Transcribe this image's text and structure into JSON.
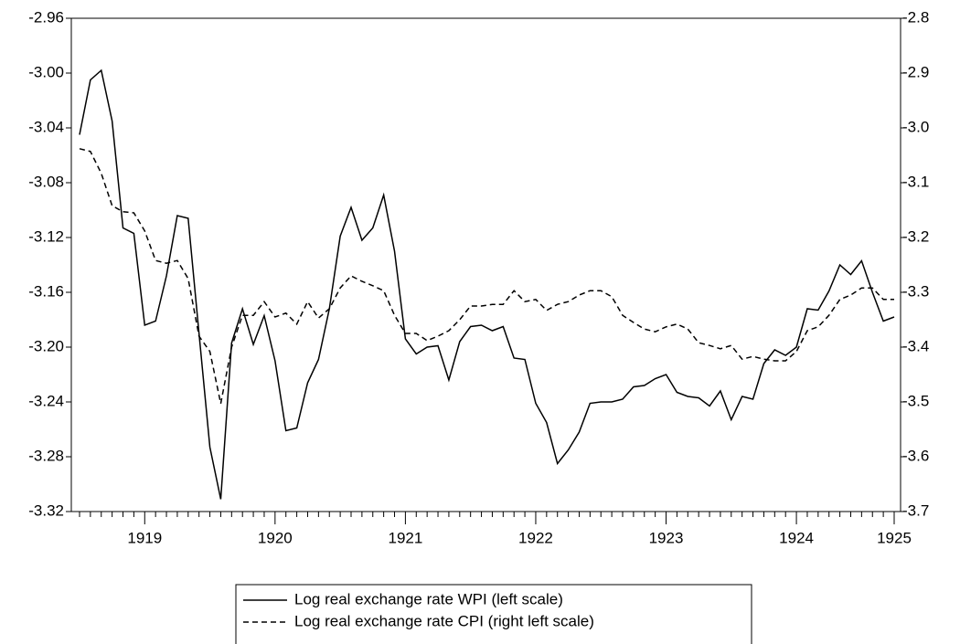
{
  "chart_data": {
    "type": "line",
    "categories": [
      null,
      null,
      null,
      null,
      null,
      null,
      "1919",
      null,
      null,
      null,
      null,
      null,
      null,
      null,
      null,
      null,
      null,
      null,
      "1920",
      null,
      null,
      null,
      null,
      null,
      null,
      null,
      null,
      null,
      null,
      null,
      "1921",
      null,
      null,
      null,
      null,
      null,
      null,
      null,
      null,
      null,
      null,
      null,
      "1922",
      null,
      null,
      null,
      null,
      null,
      null,
      null,
      null,
      null,
      null,
      null,
      "1923",
      null,
      null,
      null,
      null,
      null,
      null,
      null,
      null,
      null,
      null,
      null,
      "1924",
      null,
      null,
      null,
      null,
      null,
      null,
      null,
      null,
      "1925"
    ],
    "series": [
      {
        "name": "Log real exchange rate WPI (left scale)",
        "color": "#000000",
        "dash": "solid",
        "values": [
          -3.045,
          -3.005,
          -2.998,
          -3.035,
          -3.113,
          -3.117,
          -3.184,
          -3.181,
          -3.148,
          -3.104,
          -3.106,
          -3.19,
          -3.273,
          -3.311,
          -3.197,
          -3.172,
          -3.198,
          -3.177,
          -3.21,
          -3.261,
          -3.259,
          -3.226,
          -3.209,
          -3.172,
          -3.119,
          -3.098,
          -3.122,
          -3.113,
          -3.089,
          -3.13,
          -3.194,
          -3.205,
          -3.2,
          -3.199,
          -3.224,
          -3.196,
          -3.185,
          -3.184,
          -3.188,
          -3.185,
          -3.208,
          -3.209,
          -3.241,
          -3.255,
          -3.285,
          -3.275,
          -3.262,
          -3.241,
          -3.24,
          -3.24,
          -3.238,
          -3.229,
          -3.228,
          -3.223,
          -3.22,
          -3.233,
          -3.236,
          -3.237,
          -3.243,
          -3.232,
          -3.253,
          -3.236,
          -3.238,
          -3.212,
          -3.202,
          -3.206,
          -3.2,
          -3.172,
          -3.173,
          -3.159,
          -3.14,
          -3.147,
          -3.137,
          -3.16,
          -3.181,
          -3.178
        ]
      },
      {
        "name": "Log real exchange rate CPI (right left scale)",
        "color": "#000000",
        "dash": "dashed",
        "axis": "y2",
        "values": [
          -3.038,
          -3.043,
          -3.083,
          -3.142,
          -3.153,
          -3.155,
          -3.188,
          -3.242,
          -3.247,
          -3.242,
          -3.275,
          -3.38,
          -3.408,
          -3.503,
          -3.4,
          -3.342,
          -3.342,
          -3.317,
          -3.345,
          -3.338,
          -3.358,
          -3.317,
          -3.347,
          -3.33,
          -3.292,
          -3.27,
          -3.28,
          -3.288,
          -3.297,
          -3.342,
          -3.375,
          -3.375,
          -3.388,
          -3.38,
          -3.37,
          -3.35,
          -3.325,
          -3.325,
          -3.322,
          -3.322,
          -3.297,
          -3.317,
          -3.313,
          -3.333,
          -3.322,
          -3.317,
          -3.305,
          -3.297,
          -3.297,
          -3.308,
          -3.342,
          -3.355,
          -3.367,
          -3.372,
          -3.363,
          -3.358,
          -3.367,
          -3.392,
          -3.397,
          -3.403,
          -3.397,
          -3.422,
          -3.417,
          -3.422,
          -3.425,
          -3.425,
          -3.408,
          -3.37,
          -3.363,
          -3.342,
          -3.313,
          -3.305,
          -3.292,
          -3.292,
          -3.313,
          -3.313
        ]
      }
    ],
    "ylim": [
      -3.32,
      -2.96
    ],
    "yticks": [
      {
        "value": -2.96,
        "label": "-2.96"
      },
      {
        "value": -3.0,
        "label": "-3.00"
      },
      -3.04,
      -3.08,
      -3.12,
      -3.16,
      {
        "value": -3.2,
        "label": "-3.20"
      },
      -3.24,
      -3.28,
      -3.32
    ],
    "y2lim": [
      -3.7,
      -2.8
    ],
    "y2ticks": [
      -2.8,
      -2.9,
      {
        "value": -3.0,
        "label": "-3.0"
      },
      -3.1,
      -3.2,
      -3.3,
      -3.4,
      -3.5,
      -3.6,
      -3.7
    ],
    "grid": false,
    "legend": "bottom"
  }
}
